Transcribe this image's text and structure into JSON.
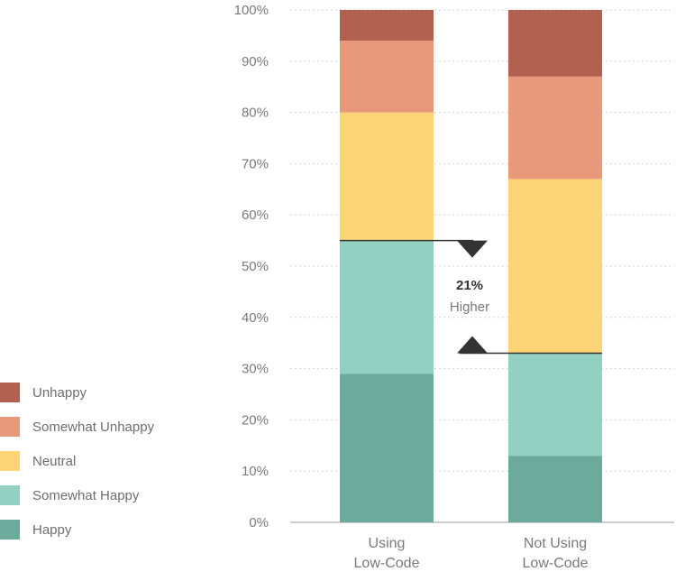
{
  "chart_data": {
    "type": "bar",
    "stacked": true,
    "categories": [
      [
        "Using",
        "Low-Code"
      ],
      [
        "Not Using",
        "Low-Code"
      ]
    ],
    "series": [
      {
        "name": "Happy",
        "color": "#6caa9c",
        "values": [
          29,
          13
        ]
      },
      {
        "name": "Somewhat Happy",
        "color": "#93d0c2",
        "values": [
          26,
          20
        ]
      },
      {
        "name": "Neutral",
        "color": "#fdd577",
        "values": [
          25,
          34
        ]
      },
      {
        "name": "Somewhat Unhappy",
        "color": "#e8987b",
        "values": [
          14,
          20
        ]
      },
      {
        "name": "Unhappy",
        "color": "#b26150",
        "values": [
          6,
          13
        ]
      }
    ],
    "ylim": [
      0,
      100
    ],
    "yticks": [
      "0%",
      "10%",
      "20%",
      "30%",
      "40%",
      "50%",
      "60%",
      "70%",
      "80%",
      "90%",
      "100%"
    ],
    "grid": true,
    "legend_position": "bottom-left",
    "annotation": {
      "value": "21%",
      "text": "Higher",
      "from": 55,
      "to": 33,
      "color": "#333333"
    }
  },
  "colors": {
    "grid": "#d4d4d4",
    "axis": "#9a9a9a"
  }
}
